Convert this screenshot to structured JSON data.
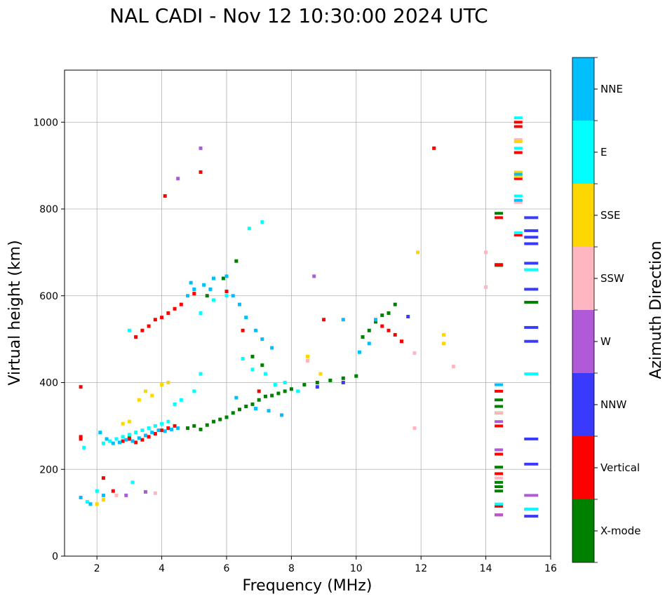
{
  "chart_data": {
    "type": "scatter",
    "title": "NAL CADI - Nov 12 10:30:00 2024 UTC",
    "xlabel": "Frequency (MHz)",
    "ylabel": "Virtual height (km)",
    "xlim": [
      1,
      16
    ],
    "ylim": [
      0,
      1120
    ],
    "xticks": [
      2,
      4,
      6,
      8,
      10,
      12,
      14,
      16
    ],
    "yticks": [
      0,
      200,
      400,
      600,
      800,
      1000
    ],
    "grid": true,
    "colorbar": {
      "label": "Azimuth Direction",
      "categories": [
        {
          "name": "X-mode",
          "color": "#008000"
        },
        {
          "name": "Vertical",
          "color": "#ff0000"
        },
        {
          "name": "NNW",
          "color": "#3a3aff"
        },
        {
          "name": "W",
          "color": "#b05ad8"
        },
        {
          "name": "SSW",
          "color": "#ffb6c1"
        },
        {
          "name": "SSE",
          "color": "#ffd700"
        },
        {
          "name": "E",
          "color": "#00ffff"
        },
        {
          "name": "NNE",
          "color": "#00bfff"
        }
      ]
    },
    "series": [
      {
        "name": "X-mode",
        "points": [
          [
            3.0,
            272
          ],
          [
            4.8,
            295
          ],
          [
            5.0,
            300
          ],
          [
            5.2,
            292
          ],
          [
            5.4,
            302
          ],
          [
            5.6,
            310
          ],
          [
            5.8,
            315
          ],
          [
            6.0,
            320
          ],
          [
            6.2,
            330
          ],
          [
            6.4,
            338
          ],
          [
            6.6,
            345
          ],
          [
            6.8,
            350
          ],
          [
            7.0,
            360
          ],
          [
            7.2,
            368
          ],
          [
            7.4,
            370
          ],
          [
            7.6,
            375
          ],
          [
            7.8,
            380
          ],
          [
            8.0,
            385
          ],
          [
            8.4,
            395
          ],
          [
            8.8,
            400
          ],
          [
            9.2,
            405
          ],
          [
            9.6,
            410
          ],
          [
            10.0,
            415
          ],
          [
            10.2,
            505
          ],
          [
            10.4,
            520
          ],
          [
            10.6,
            540
          ],
          [
            10.8,
            555
          ],
          [
            11.0,
            560
          ],
          [
            11.2,
            580
          ],
          [
            6.3,
            680
          ],
          [
            5.9,
            640
          ],
          [
            14.4,
            790
          ],
          [
            14.4,
            670
          ],
          [
            14.4,
            150
          ],
          [
            14.4,
            160
          ],
          [
            14.4,
            170
          ],
          [
            14.4,
            205
          ],
          [
            14.4,
            330
          ],
          [
            14.4,
            345
          ],
          [
            14.4,
            360
          ],
          [
            15.4,
            585
          ],
          [
            5.4,
            600
          ],
          [
            6.8,
            460
          ],
          [
            7.1,
            440
          ]
        ]
      },
      {
        "name": "Vertical",
        "points": [
          [
            1.5,
            390
          ],
          [
            1.5,
            270
          ],
          [
            1.5,
            275
          ],
          [
            2.2,
            180
          ],
          [
            2.5,
            150
          ],
          [
            2.8,
            265
          ],
          [
            3.0,
            270
          ],
          [
            3.2,
            262
          ],
          [
            3.4,
            268
          ],
          [
            3.6,
            275
          ],
          [
            3.8,
            282
          ],
          [
            4.0,
            290
          ],
          [
            4.2,
            295
          ],
          [
            4.4,
            300
          ],
          [
            3.2,
            505
          ],
          [
            3.4,
            520
          ],
          [
            3.6,
            530
          ],
          [
            3.8,
            545
          ],
          [
            4.0,
            550
          ],
          [
            4.2,
            560
          ],
          [
            4.4,
            570
          ],
          [
            4.6,
            580
          ],
          [
            5.0,
            605
          ],
          [
            5.2,
            885
          ],
          [
            4.1,
            830
          ],
          [
            6.0,
            610
          ],
          [
            6.5,
            520
          ],
          [
            7.0,
            380
          ],
          [
            9.0,
            545
          ],
          [
            10.8,
            530
          ],
          [
            11.0,
            520
          ],
          [
            11.2,
            510
          ],
          [
            11.4,
            495
          ],
          [
            12.4,
            940
          ],
          [
            14.4,
            95
          ],
          [
            14.4,
            115
          ],
          [
            14.4,
            190
          ],
          [
            14.4,
            235
          ],
          [
            14.4,
            300
          ],
          [
            14.4,
            380
          ],
          [
            14.4,
            780
          ],
          [
            14.4,
            672
          ],
          [
            15.0,
            1000
          ],
          [
            15.0,
            990
          ],
          [
            15.0,
            930
          ],
          [
            15.0,
            870
          ],
          [
            15.0,
            740
          ]
        ]
      },
      {
        "name": "NNW",
        "points": [
          [
            15.4,
            780
          ],
          [
            15.4,
            750
          ],
          [
            15.4,
            735
          ],
          [
            15.4,
            720
          ],
          [
            15.4,
            675
          ],
          [
            15.4,
            615
          ],
          [
            15.4,
            527
          ],
          [
            15.4,
            495
          ],
          [
            15.4,
            270
          ],
          [
            15.4,
            212
          ],
          [
            15.4,
            92
          ],
          [
            8.8,
            390
          ],
          [
            9.6,
            400
          ],
          [
            11.6,
            552
          ]
        ]
      },
      {
        "name": "W",
        "points": [
          [
            5.2,
            940
          ],
          [
            4.5,
            870
          ],
          [
            8.7,
            645
          ],
          [
            2.9,
            140
          ],
          [
            3.5,
            148
          ],
          [
            14.4,
            95
          ],
          [
            14.4,
            245
          ],
          [
            14.4,
            310
          ],
          [
            15.4,
            140
          ],
          [
            15.4,
            108
          ]
        ]
      },
      {
        "name": "SSW",
        "points": [
          [
            3.8,
            145
          ],
          [
            2.6,
            140
          ],
          [
            13.0,
            437
          ],
          [
            11.8,
            295
          ],
          [
            11.8,
            468
          ],
          [
            14.0,
            700
          ],
          [
            14.0,
            620
          ],
          [
            8.5,
            450
          ],
          [
            15.0,
            960
          ],
          [
            15.0,
            815
          ],
          [
            14.4,
            180
          ],
          [
            14.4,
            330
          ]
        ]
      },
      {
        "name": "SSE",
        "points": [
          [
            3.5,
            380
          ],
          [
            3.7,
            370
          ],
          [
            3.3,
            360
          ],
          [
            3.0,
            310
          ],
          [
            2.8,
            305
          ],
          [
            4.0,
            395
          ],
          [
            4.2,
            400
          ],
          [
            2.2,
            130
          ],
          [
            2.0,
            120
          ],
          [
            12.7,
            510
          ],
          [
            12.7,
            490
          ],
          [
            11.9,
            700
          ],
          [
            15.0,
            885
          ],
          [
            15.0,
            875
          ],
          [
            15.0,
            955
          ],
          [
            8.5,
            460
          ],
          [
            8.9,
            420
          ]
        ]
      },
      {
        "name": "E",
        "points": [
          [
            1.6,
            250
          ],
          [
            2.2,
            260
          ],
          [
            2.4,
            265
          ],
          [
            2.6,
            270
          ],
          [
            2.8,
            275
          ],
          [
            3.0,
            280
          ],
          [
            3.2,
            285
          ],
          [
            3.4,
            290
          ],
          [
            3.6,
            295
          ],
          [
            3.8,
            300
          ],
          [
            4.0,
            305
          ],
          [
            4.2,
            310
          ],
          [
            4.4,
            350
          ],
          [
            4.6,
            360
          ],
          [
            5.0,
            380
          ],
          [
            5.2,
            560
          ],
          [
            5.6,
            590
          ],
          [
            6.0,
            600
          ],
          [
            6.5,
            455
          ],
          [
            6.8,
            430
          ],
          [
            7.2,
            420
          ],
          [
            7.5,
            395
          ],
          [
            7.8,
            400
          ],
          [
            8.2,
            380
          ],
          [
            6.7,
            755
          ],
          [
            7.1,
            770
          ],
          [
            5.2,
            420
          ],
          [
            3.0,
            520
          ],
          [
            2.0,
            150
          ],
          [
            1.7,
            125
          ],
          [
            15.0,
            1010
          ],
          [
            15.0,
            940
          ],
          [
            15.0,
            830
          ],
          [
            15.0,
            745
          ],
          [
            15.4,
            420
          ],
          [
            15.4,
            660
          ],
          [
            15.4,
            108
          ],
          [
            14.4,
            120
          ],
          [
            3.1,
            170
          ]
        ]
      },
      {
        "name": "NNE",
        "points": [
          [
            2.1,
            285
          ],
          [
            2.3,
            270
          ],
          [
            2.5,
            260
          ],
          [
            2.7,
            262
          ],
          [
            2.9,
            268
          ],
          [
            3.1,
            265
          ],
          [
            3.3,
            272
          ],
          [
            3.5,
            278
          ],
          [
            3.7,
            285
          ],
          [
            3.9,
            290
          ],
          [
            4.1,
            288
          ],
          [
            4.3,
            292
          ],
          [
            4.5,
            295
          ],
          [
            4.8,
            600
          ],
          [
            5.0,
            615
          ],
          [
            5.3,
            625
          ],
          [
            5.6,
            640
          ],
          [
            6.0,
            645
          ],
          [
            6.2,
            600
          ],
          [
            6.4,
            580
          ],
          [
            6.6,
            550
          ],
          [
            6.9,
            520
          ],
          [
            7.1,
            500
          ],
          [
            7.4,
            480
          ],
          [
            6.3,
            365
          ],
          [
            6.9,
            340
          ],
          [
            7.3,
            335
          ],
          [
            7.7,
            325
          ],
          [
            10.1,
            470
          ],
          [
            10.4,
            490
          ],
          [
            10.6,
            545
          ],
          [
            9.6,
            545
          ],
          [
            1.5,
            135
          ],
          [
            1.8,
            120
          ],
          [
            2.2,
            140
          ],
          [
            5.5,
            615
          ],
          [
            4.9,
            630
          ],
          [
            15.0,
            880
          ],
          [
            15.0,
            820
          ],
          [
            14.4,
            395
          ]
        ]
      }
    ]
  }
}
